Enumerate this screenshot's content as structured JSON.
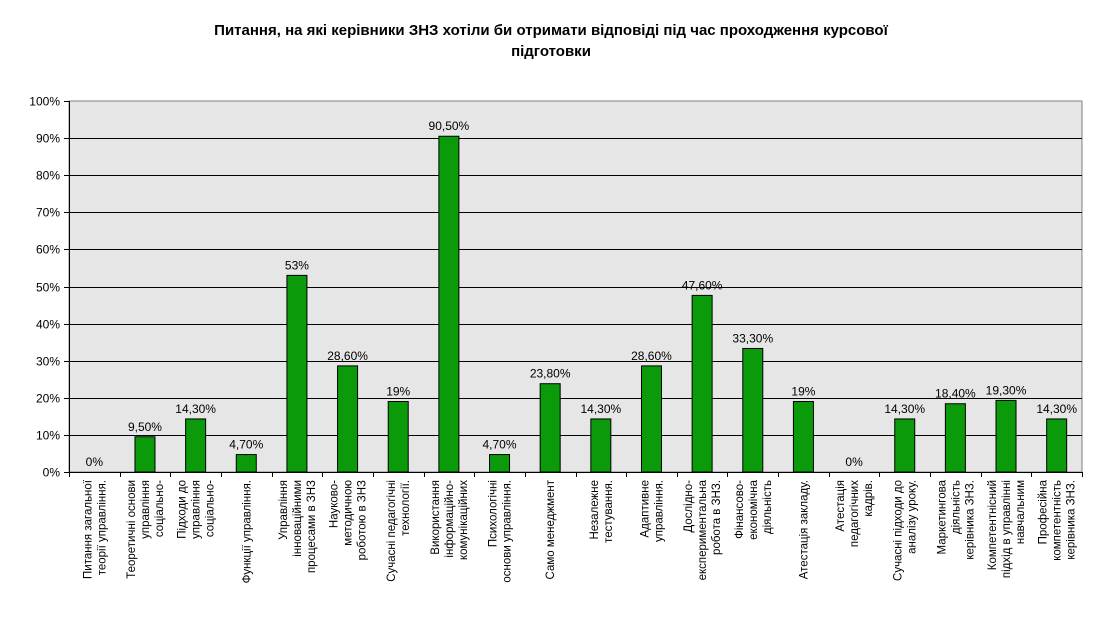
{
  "chart_data": {
    "type": "bar",
    "title_lines": [
      "Питання, на які керівники ЗНЗ хотіли би отримати відповіді під час проходження курсової",
      "підготовки"
    ],
    "ylim": [
      0,
      100
    ],
    "yticks": [
      "0%",
      "10%",
      "20%",
      "30%",
      "40%",
      "50%",
      "60%",
      "70%",
      "80%",
      "90%",
      "100%"
    ],
    "grid": true,
    "bar_color": "#0a9a0a",
    "plot_background": "#e6e6e6",
    "categories": [
      [
        "Питання загальної",
        "теорії управління."
      ],
      [
        "Теоретичні основи",
        "управління",
        "соціально-"
      ],
      [
        "Підходи до",
        "управління",
        "соціально-"
      ],
      [
        "Функції управління."
      ],
      [
        "Управління",
        "інноваційними",
        "процесами в ЗНЗ"
      ],
      [
        "Науково-",
        "методичною",
        "роботою в ЗНЗ"
      ],
      [
        "Сучасні педагогічні",
        "технології."
      ],
      [
        "Використання",
        "інформаційно-",
        "комунікаційних"
      ],
      [
        "Психологічні",
        "основи управління."
      ],
      [
        "Само менеджмент"
      ],
      [
        "Незалежне",
        "тестування."
      ],
      [
        "Адаптивне",
        "управління."
      ],
      [
        "Дослідно-",
        "експериментальна",
        "робота в ЗНЗ."
      ],
      [
        "Фінансово-",
        "економічна",
        "діяльність"
      ],
      [
        "Атестація закладу."
      ],
      [
        "Атестація",
        "педагогічних",
        "кадрів."
      ],
      [
        "Сучасні підходи до",
        "аналізу уроку."
      ],
      [
        "Маркетингова",
        "діяльність",
        "керівника ЗНЗ."
      ],
      [
        "Компетентнісний",
        "підхід в управлінні",
        "навчальним"
      ],
      [
        "Професійна",
        "компетентність",
        "керівника ЗНЗ."
      ]
    ],
    "values": [
      0,
      9.5,
      14.3,
      4.7,
      53,
      28.6,
      19,
      90.5,
      4.7,
      23.8,
      14.3,
      28.6,
      47.6,
      33.3,
      19,
      0,
      14.3,
      18.4,
      19.3,
      14.3
    ],
    "data_labels": [
      "0%",
      "9,50%",
      "14,30%",
      "4,70%",
      "53%",
      "28,60%",
      "19%",
      "90,50%",
      "4,70%",
      "23,80%",
      "14,30%",
      "28,60%",
      "47,60%",
      "33,30%",
      "19%",
      "0%",
      "14,30%",
      "18,40%",
      "19,30%",
      "14,30%"
    ]
  }
}
